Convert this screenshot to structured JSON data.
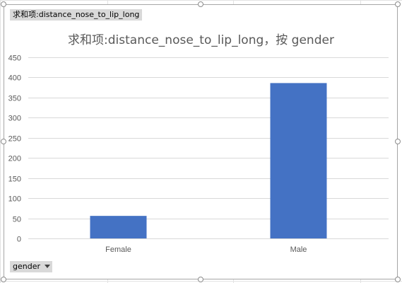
{
  "chart_data": {
    "type": "bar",
    "title": "求和项:distance_nose_to_lip_long，按 gender",
    "categories": [
      "Female",
      "Male"
    ],
    "series": [
      {
        "values": [
          56,
          386
        ]
      }
    ],
    "xlabel": "",
    "ylabel": "",
    "ylim": [
      0,
      450
    ],
    "yticks": [
      "0",
      "50",
      "100",
      "150",
      "200",
      "250",
      "300",
      "350",
      "400",
      "450"
    ],
    "grid": true,
    "legend": "none",
    "bar_color": "#4472c4"
  },
  "fields": {
    "filter_label": "求和项:distance_nose_to_lip_long",
    "axis_label": "gender"
  }
}
